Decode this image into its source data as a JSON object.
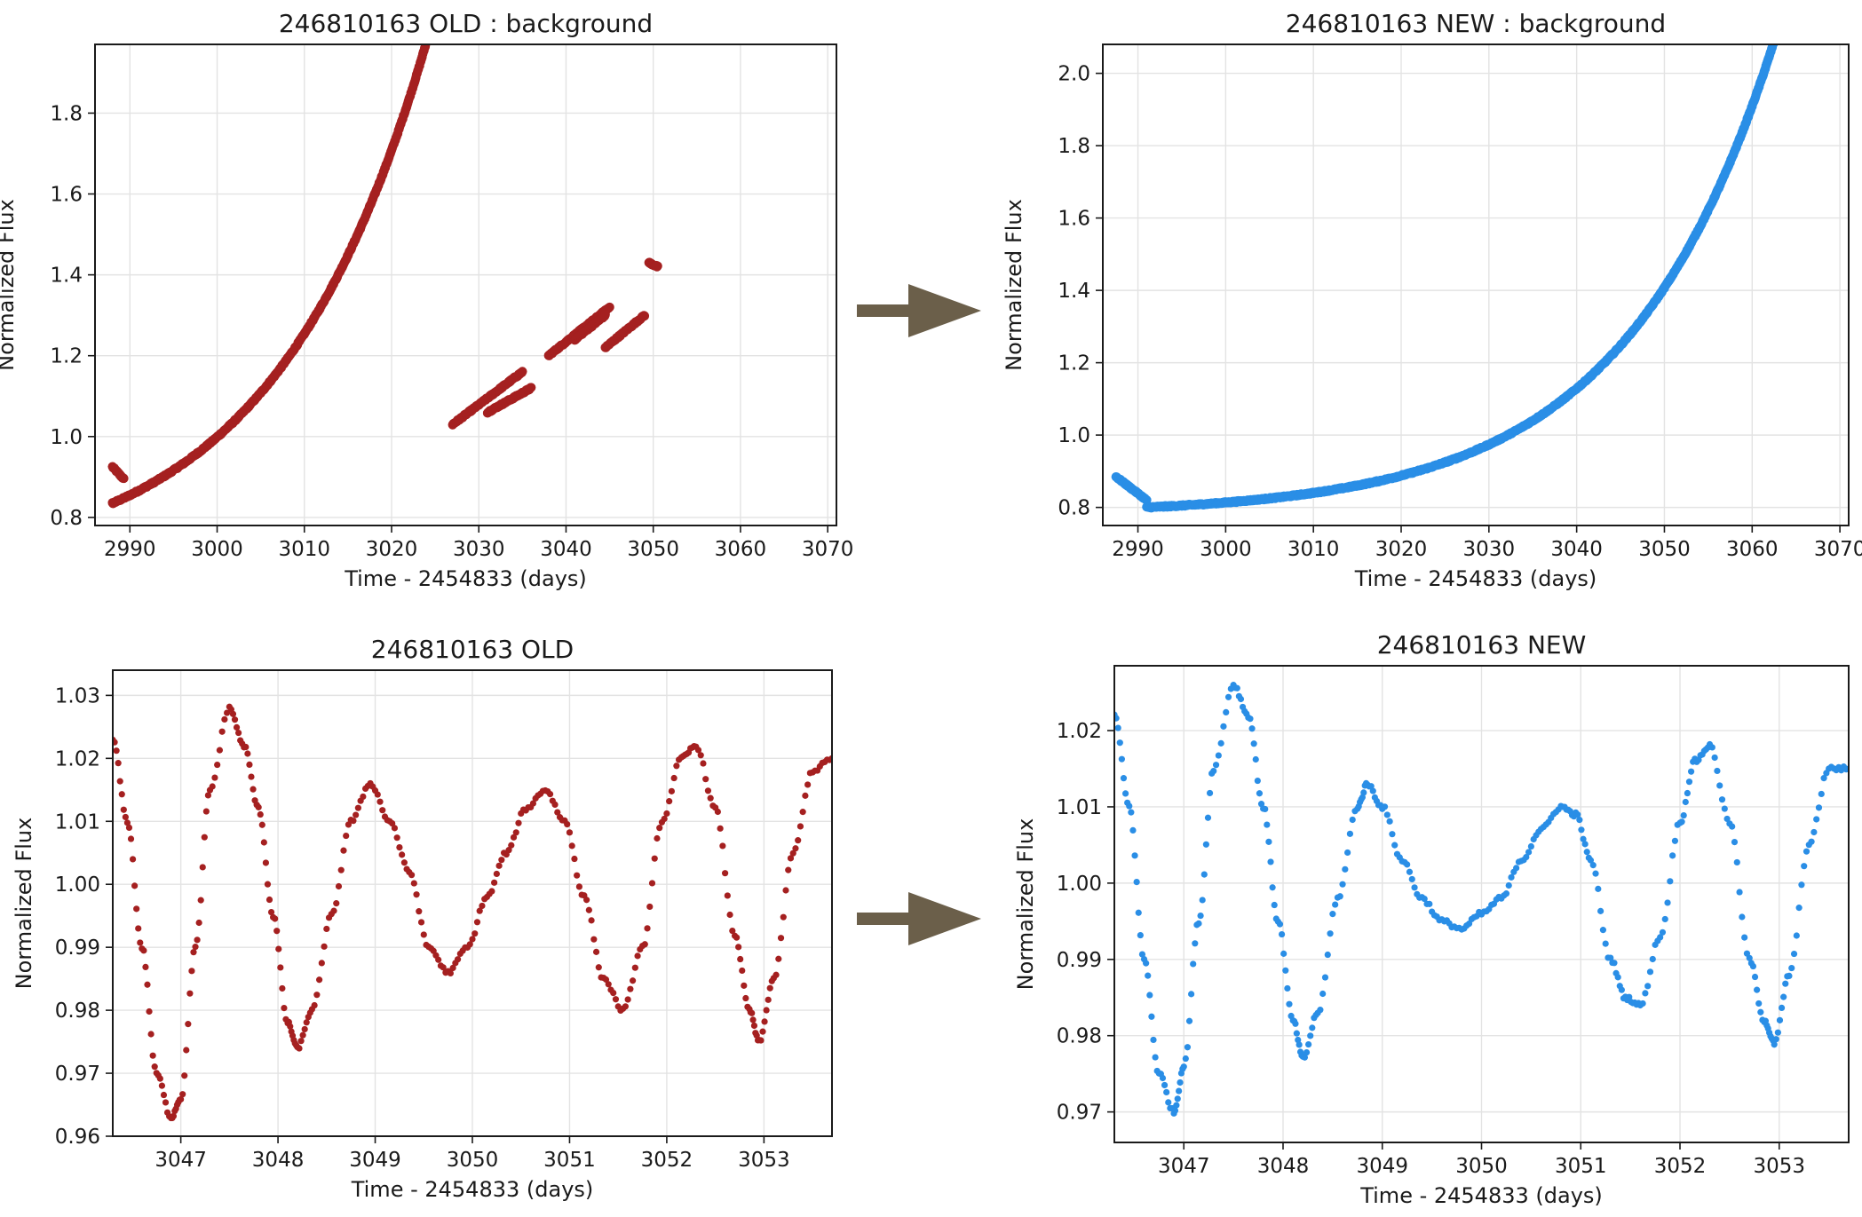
{
  "figure": {
    "arrow_color": "#6b5f4a"
  },
  "chart_data": [
    {
      "id": "top_left",
      "type": "scatter",
      "title": "246810163 OLD : background",
      "xlabel": "Time - 2454833 (days)",
      "ylabel": "Normalized Flux",
      "xlim": [
        2986,
        3071
      ],
      "ylim": [
        0.78,
        1.97
      ],
      "xticks": [
        2990,
        3000,
        3010,
        3020,
        3030,
        3040,
        3050,
        3060,
        3070
      ],
      "yticks": [
        0.8,
        1.0,
        1.2,
        1.4,
        1.6,
        1.8
      ],
      "ytick_decimals": 1,
      "grid": true,
      "color": "#a52020",
      "series": [
        {
          "segments": [
            {
              "x0": 2988.0,
              "x1": 2989.3,
              "kind": "drop",
              "y0": 0.925,
              "y1": 0.895
            },
            {
              "x0": 2988.0,
              "x1": 3027.0,
              "kind": "bkg",
              "base": 0.835,
              "amp": 0.165,
              "tau": 17.4,
              "t0": 2988.0
            },
            {
              "x0": 3027.0,
              "x1": 3035.0,
              "kind": "line",
              "y0": 1.03,
              "y1": 1.16
            },
            {
              "x0": 3026.0,
              "x1": 3033.0,
              "kind": "bkg",
              "base": 0.835,
              "amp": 0.165,
              "tau": 17.4,
              "t0": 2988.0
            },
            {
              "x0": 3031.0,
              "x1": 3036.0,
              "kind": "line",
              "y0": 1.06,
              "y1": 1.12
            },
            {
              "x0": 3038.0,
              "x1": 3045.0,
              "kind": "line",
              "y0": 1.2,
              "y1": 1.32
            },
            {
              "x0": 3041.0,
              "x1": 3044.5,
              "kind": "line",
              "y0": 1.24,
              "y1": 1.3
            },
            {
              "x0": 3044.5,
              "x1": 3049.0,
              "kind": "line",
              "y0": 1.22,
              "y1": 1.3
            },
            {
              "x0": 3049.5,
              "x1": 3050.5,
              "kind": "line",
              "y0": 1.43,
              "y1": 1.42
            },
            {
              "x0": 3050.0,
              "x1": 3068.0,
              "kind": "bkg",
              "base": 0.835,
              "amp": 0.165,
              "tau": 17.4,
              "t0": 2988.0
            }
          ]
        }
      ]
    },
    {
      "id": "top_right",
      "type": "scatter",
      "title": "246810163 NEW : background",
      "xlabel": "Time - 2454833 (days)",
      "ylabel": "Normalized Flux",
      "xlim": [
        2986,
        3071
      ],
      "ylim": [
        0.75,
        2.08
      ],
      "xticks": [
        2990,
        3000,
        3010,
        3020,
        3030,
        3040,
        3050,
        3060,
        3070
      ],
      "yticks": [
        0.8,
        1.0,
        1.2,
        1.4,
        1.6,
        1.8,
        2.0
      ],
      "ytick_decimals": 1,
      "grid": true,
      "color": "#2a8ee6",
      "series": [
        {
          "segments": [
            {
              "x0": 2987.5,
              "x1": 2991.0,
              "kind": "drop",
              "y0": 0.885,
              "y1": 0.82
            },
            {
              "x0": 2991.0,
              "x1": 3068.0,
              "kind": "bkg",
              "base": 0.8,
              "amp": 0.0195,
              "tau": 17.0,
              "t0": 2991.0
            }
          ]
        }
      ]
    },
    {
      "id": "bottom_left",
      "type": "scatter",
      "title": "246810163 OLD",
      "xlabel": "Time - 2454833 (days)",
      "ylabel": "Normalized Flux",
      "xlim": [
        3046.3,
        3053.7
      ],
      "ylim": [
        0.96,
        1.034
      ],
      "xticks": [
        3047,
        3048,
        3049,
        3050,
        3051,
        3052,
        3053
      ],
      "yticks": [
        0.96,
        0.97,
        0.98,
        0.99,
        1.0,
        1.01,
        1.02,
        1.03
      ],
      "ytick_decimals": 2,
      "grid": true,
      "color": "#a52020",
      "series": [
        {
          "knots": [
            [
              3046.3,
              1.023
            ],
            [
              3046.45,
              1.01
            ],
            [
              3046.6,
              0.99
            ],
            [
              3046.75,
              0.97
            ],
            [
              3046.9,
              0.963
            ],
            [
              3047.0,
              0.966
            ],
            [
              3047.15,
              0.99
            ],
            [
              3047.3,
              1.015
            ],
            [
              3047.5,
              1.028
            ],
            [
              3047.65,
              1.022
            ],
            [
              3047.8,
              1.012
            ],
            [
              3047.95,
              0.995
            ],
            [
              3048.1,
              0.978
            ],
            [
              3048.2,
              0.974
            ],
            [
              3048.35,
              0.98
            ],
            [
              3048.55,
              0.995
            ],
            [
              3048.75,
              1.01
            ],
            [
              3048.95,
              1.016
            ],
            [
              3049.15,
              1.01
            ],
            [
              3049.35,
              1.002
            ],
            [
              3049.55,
              0.99
            ],
            [
              3049.75,
              0.986
            ],
            [
              3049.95,
              0.99
            ],
            [
              3050.15,
              0.998
            ],
            [
              3050.35,
              1.005
            ],
            [
              3050.55,
              1.012
            ],
            [
              3050.75,
              1.015
            ],
            [
              3050.95,
              1.01
            ],
            [
              3051.15,
              0.998
            ],
            [
              3051.35,
              0.985
            ],
            [
              3051.55,
              0.98
            ],
            [
              3051.75,
              0.99
            ],
            [
              3051.95,
              1.01
            ],
            [
              3052.15,
              1.02
            ],
            [
              3052.3,
              1.022
            ],
            [
              3052.5,
              1.012
            ],
            [
              3052.7,
              0.992
            ],
            [
              3052.85,
              0.98
            ],
            [
              3052.95,
              0.975
            ],
            [
              3053.1,
              0.985
            ],
            [
              3053.3,
              1.005
            ],
            [
              3053.5,
              1.018
            ],
            [
              3053.7,
              1.02
            ]
          ]
        }
      ]
    },
    {
      "id": "bottom_right",
      "type": "scatter",
      "title": "246810163 NEW",
      "xlabel": "Time - 2454833 (days)",
      "ylabel": "Normalized Flux",
      "xlim": [
        3046.3,
        3053.7
      ],
      "ylim": [
        0.966,
        1.0285
      ],
      "xticks": [
        3047,
        3048,
        3049,
        3050,
        3051,
        3052,
        3053
      ],
      "yticks": [
        0.97,
        0.98,
        0.99,
        1.0,
        1.01,
        1.02
      ],
      "ytick_decimals": 2,
      "grid": true,
      "color": "#2a8ee6",
      "series": [
        {
          "knots": [
            [
              3046.3,
              1.022
            ],
            [
              3046.45,
              1.01
            ],
            [
              3046.6,
              0.99
            ],
            [
              3046.75,
              0.975
            ],
            [
              3046.9,
              0.97
            ],
            [
              3047.0,
              0.976
            ],
            [
              3047.15,
              0.995
            ],
            [
              3047.3,
              1.015
            ],
            [
              3047.5,
              1.026
            ],
            [
              3047.65,
              1.022
            ],
            [
              3047.8,
              1.01
            ],
            [
              3047.95,
              0.995
            ],
            [
              3048.1,
              0.982
            ],
            [
              3048.2,
              0.977
            ],
            [
              3048.35,
              0.983
            ],
            [
              3048.55,
              0.998
            ],
            [
              3048.75,
              1.01
            ],
            [
              3048.85,
              1.013
            ],
            [
              3049.0,
              1.01
            ],
            [
              3049.2,
              1.003
            ],
            [
              3049.4,
              0.998
            ],
            [
              3049.6,
              0.995
            ],
            [
              3049.8,
              0.994
            ],
            [
              3050.0,
              0.996
            ],
            [
              3050.2,
              0.998
            ],
            [
              3050.4,
              1.003
            ],
            [
              3050.6,
              1.007
            ],
            [
              3050.8,
              1.01
            ],
            [
              3050.95,
              1.009
            ],
            [
              3051.1,
              1.003
            ],
            [
              3051.3,
              0.99
            ],
            [
              3051.45,
              0.985
            ],
            [
              3051.6,
              0.984
            ],
            [
              3051.8,
              0.993
            ],
            [
              3052.0,
              1.008
            ],
            [
              3052.15,
              1.016
            ],
            [
              3052.3,
              1.018
            ],
            [
              3052.5,
              1.008
            ],
            [
              3052.7,
              0.99
            ],
            [
              3052.85,
              0.982
            ],
            [
              3052.95,
              0.979
            ],
            [
              3053.1,
              0.988
            ],
            [
              3053.3,
              1.005
            ],
            [
              3053.5,
              1.015
            ],
            [
              3053.7,
              1.015
            ]
          ]
        }
      ]
    }
  ]
}
